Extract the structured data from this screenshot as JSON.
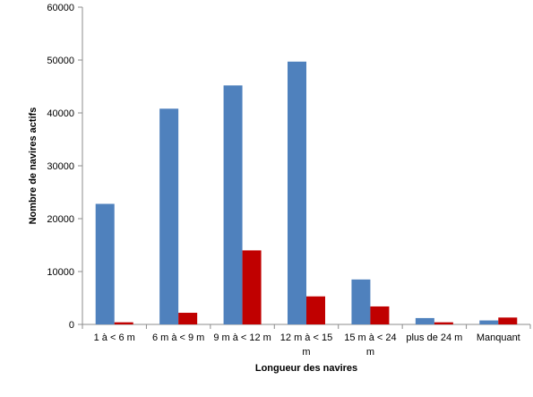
{
  "chart_data": {
    "type": "bar",
    "xlabel": "Longueur des navires",
    "ylabel": "Nombre de navires actifs",
    "ylim": [
      0,
      60000
    ],
    "yticks": [
      0,
      10000,
      20000,
      30000,
      40000,
      50000,
      60000
    ],
    "grid": false,
    "legend": "none",
    "categories": [
      [
        "1 à < 6 m"
      ],
      [
        "6 m à < 9 m"
      ],
      [
        "9 m à < 12 m"
      ],
      [
        "12 m à < 15",
        "m"
      ],
      [
        "15 m à < 24",
        "m"
      ],
      [
        "plus de 24 m"
      ],
      [
        "Manquant"
      ]
    ],
    "series": [
      {
        "color": "#4F81BD",
        "values": [
          22800,
          40800,
          45200,
          49700,
          8500,
          1200,
          750
        ]
      },
      {
        "color": "#C00000",
        "values": [
          400,
          2200,
          14000,
          5300,
          3400,
          400,
          1300
        ]
      }
    ]
  }
}
